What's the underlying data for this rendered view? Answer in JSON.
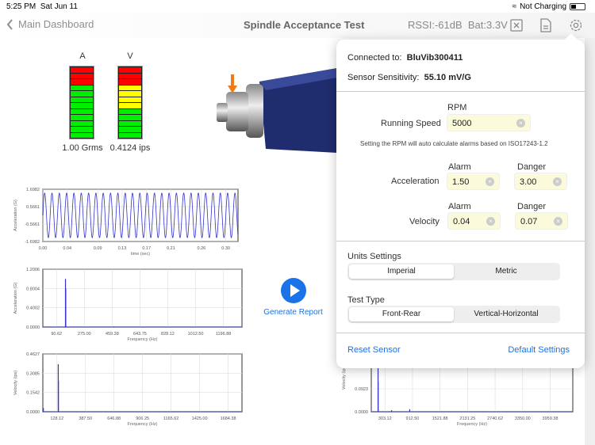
{
  "status": {
    "time": "5:25 PM",
    "date": "Sat Jun 11",
    "charging": "Not Charging",
    "icons": [
      "wifi-icon",
      "battery-icon"
    ]
  },
  "nav": {
    "back_label": "Main Dashboard",
    "title": "Spindle Acceptance Test",
    "rssi": "RSSI:-61dB",
    "battery": "Bat:3.3V",
    "icons": [
      "close-box-icon",
      "document-icon",
      "gear-icon"
    ]
  },
  "meters": [
    {
      "label": "A",
      "value": "1.00 Grms",
      "segments": [
        "red",
        "red",
        "red",
        "green",
        "green",
        "green",
        "green",
        "green",
        "green",
        "green",
        "green",
        "green"
      ]
    },
    {
      "label": "V",
      "value": "0.4124 ips",
      "segments": [
        "red",
        "red",
        "red",
        "yellow",
        "yellow",
        "yellow",
        "yellow",
        "green",
        "green",
        "green",
        "green",
        "green"
      ]
    }
  ],
  "colors": {
    "red": "#ff0000",
    "yellow": "#ffff00",
    "green": "#00ee00",
    "accent": "#1a73e8",
    "trace": "#3333cc"
  },
  "report": {
    "label": "Generate Report"
  },
  "chart_data": [
    {
      "type": "line",
      "xlabel": "time (sec)",
      "ylabel": "Acceleration (G)",
      "xlim": [
        0,
        0.32
      ],
      "ylim": [
        -1.6982,
        1.6982
      ],
      "yticks": [
        "1.6982",
        "0.5661",
        "-0.5661",
        "-1.6982"
      ],
      "xticks": [
        "0.00",
        "0.04",
        "0.09",
        "0.13",
        "0.17",
        "0.21",
        "0.26",
        "0.30"
      ],
      "signal": {
        "shape": "sine",
        "frequency_hz": 83.33,
        "amplitude": 1.45
      },
      "grid": true
    },
    {
      "type": "bar",
      "xlabel": "Frequency (Hz)",
      "ylabel": "Acceleration (G)",
      "xlim": [
        0,
        1320
      ],
      "ylim": [
        0,
        1.2006
      ],
      "yticks": [
        "1.2006",
        "0.8004",
        "0.4002",
        "0.0000"
      ],
      "xticks": [
        "90.62",
        "275.00",
        "459.38",
        "643.75",
        "828.12",
        "1012.50",
        "1196.88"
      ],
      "peaks": [
        {
          "x": 150,
          "y": 1.0
        },
        {
          "x": 152,
          "y": 0.8
        },
        {
          "x": 470,
          "y": 0.01
        }
      ],
      "grid": true
    },
    {
      "type": "bar",
      "xlabel": "Frequency (Hz)",
      "ylabel": "Velocity (ips)",
      "xlim": [
        0,
        1810
      ],
      "ylim": [
        0,
        0.4627
      ],
      "yticks": [
        "0.4627",
        "0.3085",
        "0.1542",
        "0.0000"
      ],
      "xticks": [
        "128.12",
        "387.50",
        "646.88",
        "906.25",
        "1165.62",
        "1425.00",
        "1684.38"
      ],
      "peaks": [
        {
          "x": 5,
          "y": 0.03
        },
        {
          "x": 140,
          "y": 0.38
        },
        {
          "x": 142,
          "y": 0.25
        }
      ],
      "grid": true
    },
    {
      "type": "bar",
      "xlabel": "Frequency (Hz)",
      "ylabel": "Velocity (ips)",
      "xlim": [
        0,
        4460
      ],
      "ylim": [
        0,
        0.2769
      ],
      "yticks": [
        "0.0923",
        "0.0000"
      ],
      "xticks": [
        "303.12",
        "912.50",
        "1521.88",
        "2131.25",
        "2740.62",
        "3350.00",
        "3959.38"
      ],
      "peaks": [
        {
          "x": 150,
          "y": 0.26
        },
        {
          "x": 152,
          "y": 0.12
        },
        {
          "x": 450,
          "y": 0.006
        },
        {
          "x": 850,
          "y": 0.01
        }
      ],
      "grid": true
    }
  ],
  "popover": {
    "connected_label": "Connected to:",
    "connected_value": "BluVib300411",
    "sensitivity_label": "Sensor Sensitivity:",
    "sensitivity_value": "55.10 mV/G",
    "rpm_header": "RPM",
    "running_speed_label": "Running Speed",
    "running_speed": "5000",
    "note": "Setting the RPM will auto calculate alarms based on ISO17243-1.2",
    "alarm_header": "Alarm",
    "danger_header": "Danger",
    "acceleration_label": "Acceleration",
    "acc_alarm": "1.50",
    "acc_danger": "3.00",
    "velocity_label": "Velocity",
    "vel_alarm": "0.04",
    "vel_danger": "0.07",
    "units_label": "Units Settings",
    "units_options": [
      "Imperial",
      "Metric"
    ],
    "units_selected": "Imperial",
    "test_type_label": "Test Type",
    "test_type_options": [
      "Front-Rear",
      "Vertical-Horizontal"
    ],
    "test_type_selected": "Front-Rear",
    "reset_label": "Reset Sensor",
    "default_label": "Default Settings"
  }
}
